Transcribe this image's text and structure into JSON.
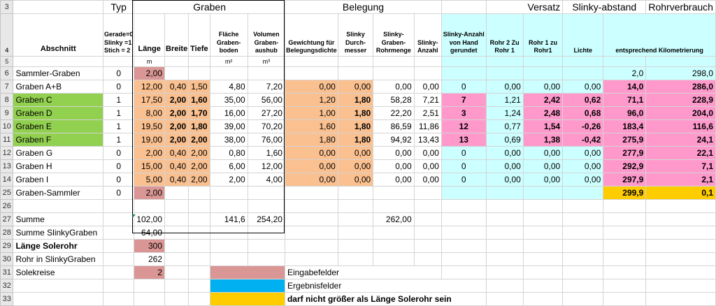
{
  "header": {
    "row_num": "3",
    "typ": "Typ",
    "graben": "Graben",
    "belegung": "Belegung",
    "versatz": "Versatz",
    "slinky_abstand": "Slinky-abstand",
    "rohrverbrauch": "Rohrverbrauch"
  },
  "subheader": {
    "row_num": "4",
    "abschnitt": "Abschnitt",
    "typ": "Gerade=0 Slinky =1 Stich = 2",
    "laenge": "Länge",
    "breite": "Breite",
    "tiefe": "Tiefe",
    "flaeche": "Fläche Graben-boden",
    "volumen": "Volumen Graben-aushub",
    "gewichtung": "Gewichtung für Belegungsdichte",
    "durchmesser": "Slinky Durch-messer",
    "rohrmenge": "Slinky-Graben-Rohrmenge",
    "anzahl": "Slinky-Anzahl",
    "anzahl_hand": "Slinky-Anzahl von Hand gerundet",
    "rohr2": "Rohr 2 Zu Rohr 1",
    "rohr1": "Rohr 1 zu Rohr1",
    "lichte": "Lichte",
    "kilometrierung": "entsprechend Kilometrierung"
  },
  "units": {
    "row_num": "5",
    "laenge": "m",
    "flaeche": "m²",
    "volumen": "m³"
  },
  "rows": [
    {
      "num": "6",
      "name": "Sammler-Graben",
      "typ": "0",
      "laenge": "2,00",
      "kum": "2,0",
      "km": "298,0"
    },
    {
      "num": "7",
      "name": "Graben A+B",
      "typ": "0",
      "laenge": "12,00",
      "breite": "0,40",
      "tiefe": "1,50",
      "flaeche": "4,80",
      "volumen": "7,20",
      "gew": "0,00",
      "dm": "0,00",
      "rohrm": "0,00",
      "anz": "0,00",
      "hand": "0",
      "r2": "0,00",
      "r1": "0,00",
      "licht": "0,00",
      "kum": "14,0",
      "km": "286,0"
    },
    {
      "num": "8",
      "name": "Graben C",
      "typ": "1",
      "laenge": "17,50",
      "breite": "2,00",
      "tiefe": "1,60",
      "flaeche": "35,00",
      "volumen": "56,00",
      "gew": "1,20",
      "dm": "1,80",
      "rohrm": "58,28",
      "anz": "7,21",
      "hand": "7",
      "r2": "1,21",
      "r1": "2,42",
      "licht": "0,62",
      "kum": "71,1",
      "km": "228,9"
    },
    {
      "num": "9",
      "name": "Graben D",
      "typ": "1",
      "laenge": "8,00",
      "breite": "2,00",
      "tiefe": "1,70",
      "flaeche": "16,00",
      "volumen": "27,20",
      "gew": "1,00",
      "dm": "1,80",
      "rohrm": "22,20",
      "anz": "2,51",
      "hand": "3",
      "r2": "1,24",
      "r1": "2,48",
      "licht": "0,68",
      "kum": "96,0",
      "km": "204,0"
    },
    {
      "num": "10",
      "name": "Graben E",
      "typ": "1",
      "laenge": "19,50",
      "breite": "2,00",
      "tiefe": "1,80",
      "flaeche": "39,00",
      "volumen": "70,20",
      "gew": "1,60",
      "dm": "1,80",
      "rohrm": "86,59",
      "anz": "11,86",
      "hand": "12",
      "r2": "0,77",
      "r1": "1,54",
      "licht": "-0,26",
      "kum": "183,4",
      "km": "116,6"
    },
    {
      "num": "11",
      "name": "Graben F",
      "typ": "1",
      "laenge": "19,00",
      "breite": "2,00",
      "tiefe": "2,00",
      "flaeche": "38,00",
      "volumen": "76,00",
      "gew": "1,80",
      "dm": "1,80",
      "rohrm": "94,92",
      "anz": "13,43",
      "hand": "13",
      "r2": "0,69",
      "r1": "1,38",
      "licht": "-0,42",
      "kum": "275,9",
      "km": "24,1"
    },
    {
      "num": "12",
      "name": "Graben G",
      "typ": "0",
      "laenge": "2,00",
      "breite": "0,40",
      "tiefe": "2,00",
      "flaeche": "0,80",
      "volumen": "1,60",
      "gew": "0,00",
      "dm": "0,00",
      "rohrm": "0,00",
      "anz": "0,00",
      "hand": "0",
      "r2": "0,00",
      "r1": "0,00",
      "licht": "0,00",
      "kum": "277,9",
      "km": "22,1"
    },
    {
      "num": "13",
      "name": "Graben H",
      "typ": "0",
      "laenge": "15,00",
      "breite": "0,40",
      "tiefe": "2,00",
      "flaeche": "6,00",
      "volumen": "12,00",
      "gew": "0,00",
      "dm": "0,00",
      "rohrm": "0,00",
      "anz": "0,00",
      "hand": "0",
      "r2": "0,00",
      "r1": "0,00",
      "licht": "0,00",
      "kum": "292,9",
      "km": "7,1"
    },
    {
      "num": "14",
      "name": "Graben I",
      "typ": "0",
      "laenge": "5,00",
      "breite": "0,40",
      "tiefe": "2,00",
      "flaeche": "2,00",
      "volumen": "4,00",
      "gew": "0,00",
      "dm": "0,00",
      "rohrm": "0,00",
      "anz": "0,00",
      "hand": "0",
      "r2": "0,00",
      "r1": "0,00",
      "licht": "0,00",
      "kum": "297,9",
      "km": "2,1"
    },
    {
      "num": "25",
      "name": "Graben-Sammler",
      "typ": "0",
      "laenge": "2,00",
      "kum": "299,9",
      "km": "0,1"
    }
  ],
  "summe": {
    "num": "27",
    "label": "Summe",
    "laenge": "102,00",
    "flaeche": "141,6",
    "volumen": "254,20",
    "rohrm": "262,00"
  },
  "extra": [
    {
      "num": "28",
      "label": "Summe SlinkyGraben",
      "value": "64,00"
    },
    {
      "num": "29",
      "label": "Länge Solerohr",
      "value": "300"
    },
    {
      "num": "30",
      "label": "Rohr in SlinkyGraben",
      "value": "262"
    },
    {
      "num": "31",
      "label": "Solekreise",
      "value": "2"
    }
  ],
  "legend": {
    "eingabe": "Eingabefelder",
    "ergebnis": "Ergebnisfelder",
    "warnung": "darf nicht größer als Länge Solerohr sein",
    "row31": "31",
    "row32": "32",
    "row33": "33"
  },
  "colors": {
    "input": "#d99694",
    "result": "#00b0f0",
    "warning": "#ffcc00",
    "section_green": "#92d050",
    "slinky_magenta": "#ff99cc",
    "light_cyan": "#ccffff",
    "orange": "#fac090"
  }
}
